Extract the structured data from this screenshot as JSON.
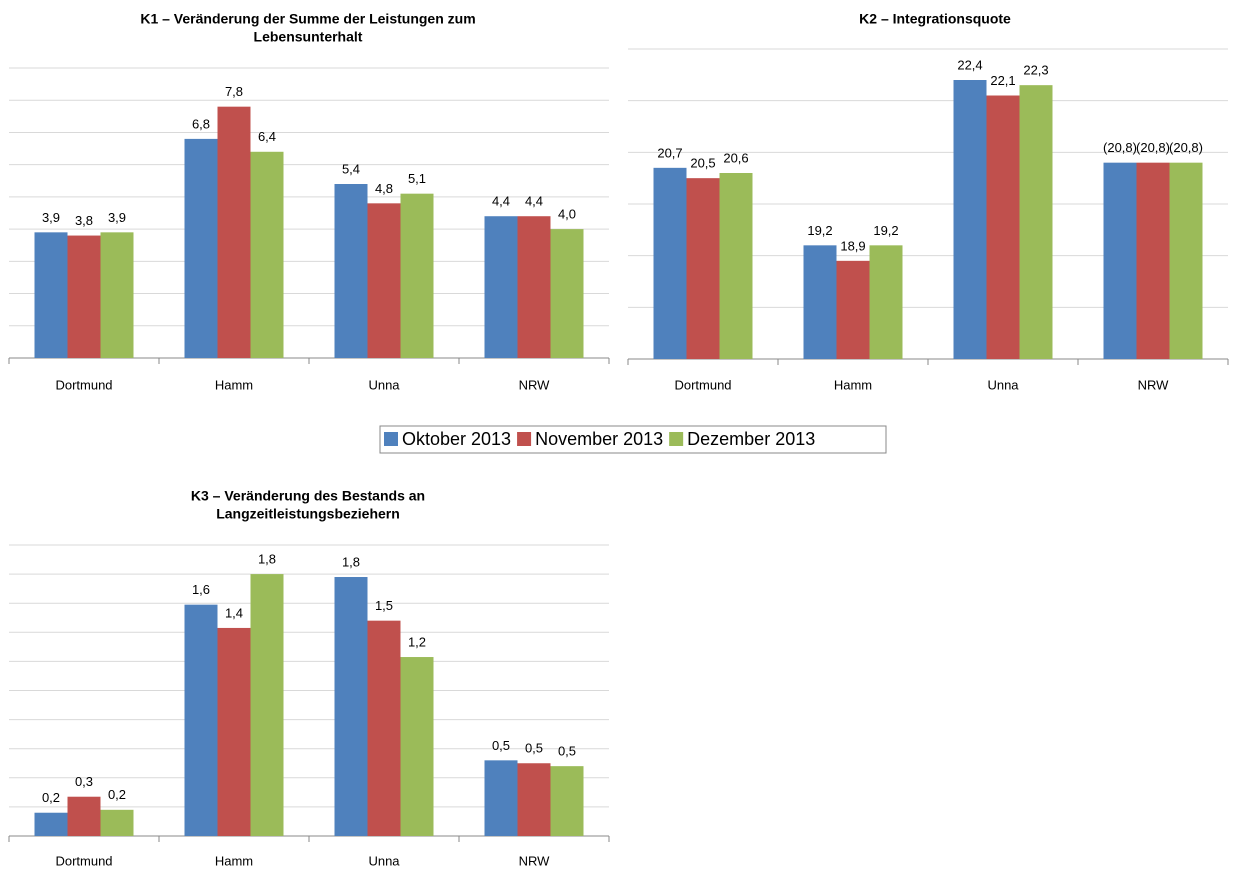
{
  "chart_data": [
    {
      "type": "bar",
      "title": [
        "K1 – Veränderung der Summe der Leistungen zum",
        "Lebensunterhalt"
      ],
      "categories": [
        "Dortmund",
        "Hamm",
        "Unna",
        "NRW"
      ],
      "series": [
        {
          "name": "Oktober 2013",
          "color": "#4f81bd",
          "values": [
            3.9,
            6.8,
            5.4,
            4.4
          ],
          "value_labels": [
            "3,9",
            "6,8",
            "5,4",
            "4,4"
          ]
        },
        {
          "name": "November 2013",
          "color": "#c0504d",
          "values": [
            3.8,
            7.8,
            4.8,
            4.4
          ],
          "value_labels": [
            "3,8",
            "7,8",
            "4,8",
            "4,4"
          ]
        },
        {
          "name": "Dezember 2013",
          "color": "#9bbb59",
          "values": [
            3.9,
            6.4,
            5.1,
            4.0
          ],
          "value_labels": [
            "3,9",
            "6,4",
            "5,1",
            "4,0"
          ]
        }
      ],
      "ylim": [
        0,
        9
      ],
      "yticks": [
        0,
        1,
        2,
        3,
        4,
        5,
        6,
        7,
        8,
        9
      ],
      "grid": true
    },
    {
      "type": "bar",
      "title": [
        "K2 – Integrationsquote"
      ],
      "categories": [
        "Dortmund",
        "Hamm",
        "Unna",
        "NRW"
      ],
      "series": [
        {
          "name": "Oktober 2013",
          "color": "#4f81bd",
          "values": [
            20.7,
            19.2,
            22.4,
            20.8
          ],
          "value_labels": [
            "20,7",
            "19,2",
            "22,4",
            "(20,8)"
          ]
        },
        {
          "name": "November 2013",
          "color": "#c0504d",
          "values": [
            20.5,
            18.9,
            22.1,
            20.8
          ],
          "value_labels": [
            "20,5",
            "18,9",
            "22,1",
            "(20,8)"
          ]
        },
        {
          "name": "Dezember 2013",
          "color": "#9bbb59",
          "values": [
            20.6,
            19.2,
            22.3,
            20.8
          ],
          "value_labels": [
            "20,6",
            "19,2",
            "22,3",
            "(20,8)"
          ]
        }
      ],
      "ylim": [
        17,
        23
      ],
      "yticks": [
        17,
        18,
        19,
        20,
        21,
        22,
        23
      ],
      "grid": true
    },
    {
      "type": "bar",
      "title": [
        "K3 – Veränderung des Bestands an",
        "Langzeitleistungsbeziehern"
      ],
      "categories": [
        "Dortmund",
        "Hamm",
        "Unna",
        "NRW"
      ],
      "series": [
        {
          "name": "Oktober 2013",
          "color": "#4f81bd",
          "values": [
            0.16,
            1.59,
            1.78,
            0.52
          ],
          "value_labels": [
            "0,2",
            "1,6",
            "1,8",
            "0,5"
          ]
        },
        {
          "name": "November 2013",
          "color": "#c0504d",
          "values": [
            0.27,
            1.43,
            1.48,
            0.5
          ],
          "value_labels": [
            "0,3",
            "1,4",
            "1,5",
            "0,5"
          ]
        },
        {
          "name": "Dezember 2013",
          "color": "#9bbb59",
          "values": [
            0.18,
            1.8,
            1.23,
            0.48
          ],
          "value_labels": [
            "0,2",
            "1,8",
            "1,2",
            "0,5"
          ]
        }
      ],
      "ylim": [
        0,
        2
      ],
      "yticks": [
        0,
        0.2,
        0.4,
        0.6,
        0.8,
        1,
        1.2,
        1.4,
        1.6,
        1.8,
        2
      ],
      "grid": true
    }
  ]
}
